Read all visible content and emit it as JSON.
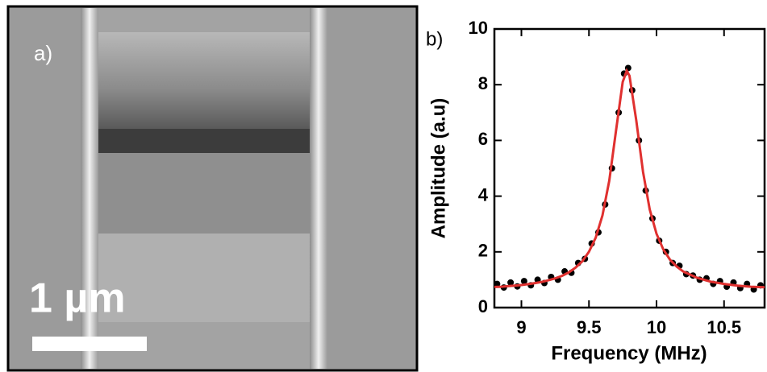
{
  "image_panel": {
    "label": "a)",
    "scale_bar": "1 µm"
  },
  "chart_data": {
    "type": "scatter",
    "panel_label": "b)",
    "xlabel": "Frequency (MHz)",
    "ylabel": "Amplitude (a.u)",
    "xlim": [
      8.8,
      10.8
    ],
    "xticks": [
      9,
      9.5,
      10,
      10.5
    ],
    "ylim": [
      0,
      10
    ],
    "yticks": [
      0,
      2,
      4,
      6,
      8,
      10
    ],
    "points": {
      "color": "#000000",
      "x": [
        8.82,
        8.87,
        8.92,
        8.97,
        9.02,
        9.07,
        9.12,
        9.17,
        9.22,
        9.27,
        9.32,
        9.37,
        9.42,
        9.47,
        9.52,
        9.57,
        9.62,
        9.67,
        9.72,
        9.76,
        9.79,
        9.82,
        9.87,
        9.92,
        9.97,
        10.02,
        10.07,
        10.12,
        10.17,
        10.22,
        10.27,
        10.32,
        10.37,
        10.42,
        10.47,
        10.52,
        10.57,
        10.62,
        10.67,
        10.72,
        10.77
      ],
      "values": [
        0.85,
        0.72,
        0.9,
        0.76,
        0.95,
        0.8,
        1.0,
        0.88,
        1.1,
        1.0,
        1.3,
        1.25,
        1.6,
        1.75,
        2.3,
        2.7,
        3.7,
        5.0,
        7.0,
        8.4,
        8.6,
        7.8,
        6.0,
        4.2,
        3.2,
        2.4,
        2.0,
        1.6,
        1.5,
        1.2,
        1.15,
        1.0,
        1.05,
        0.85,
        0.95,
        0.75,
        0.9,
        0.7,
        0.85,
        0.65,
        0.8
      ]
    },
    "fit": {
      "type": "line",
      "color": "#e0302f",
      "x": [
        8.8,
        8.85,
        8.9,
        8.95,
        9.0,
        9.05,
        9.1,
        9.15,
        9.2,
        9.25,
        9.3,
        9.35,
        9.4,
        9.45,
        9.5,
        9.55,
        9.6,
        9.65,
        9.7,
        9.75,
        9.78,
        9.8,
        9.85,
        9.9,
        9.95,
        10.0,
        10.05,
        10.1,
        10.15,
        10.2,
        10.3,
        10.4,
        10.5,
        10.6,
        10.7,
        10.8
      ],
      "values": [
        0.74,
        0.75,
        0.77,
        0.79,
        0.81,
        0.84,
        0.88,
        0.92,
        0.98,
        1.05,
        1.14,
        1.26,
        1.43,
        1.66,
        2.0,
        2.51,
        3.31,
        4.55,
        6.33,
        8.1,
        8.5,
        8.32,
        6.72,
        4.87,
        3.52,
        2.65,
        2.09,
        1.72,
        1.47,
        1.29,
        1.07,
        0.93,
        0.85,
        0.79,
        0.75,
        0.73
      ]
    }
  }
}
